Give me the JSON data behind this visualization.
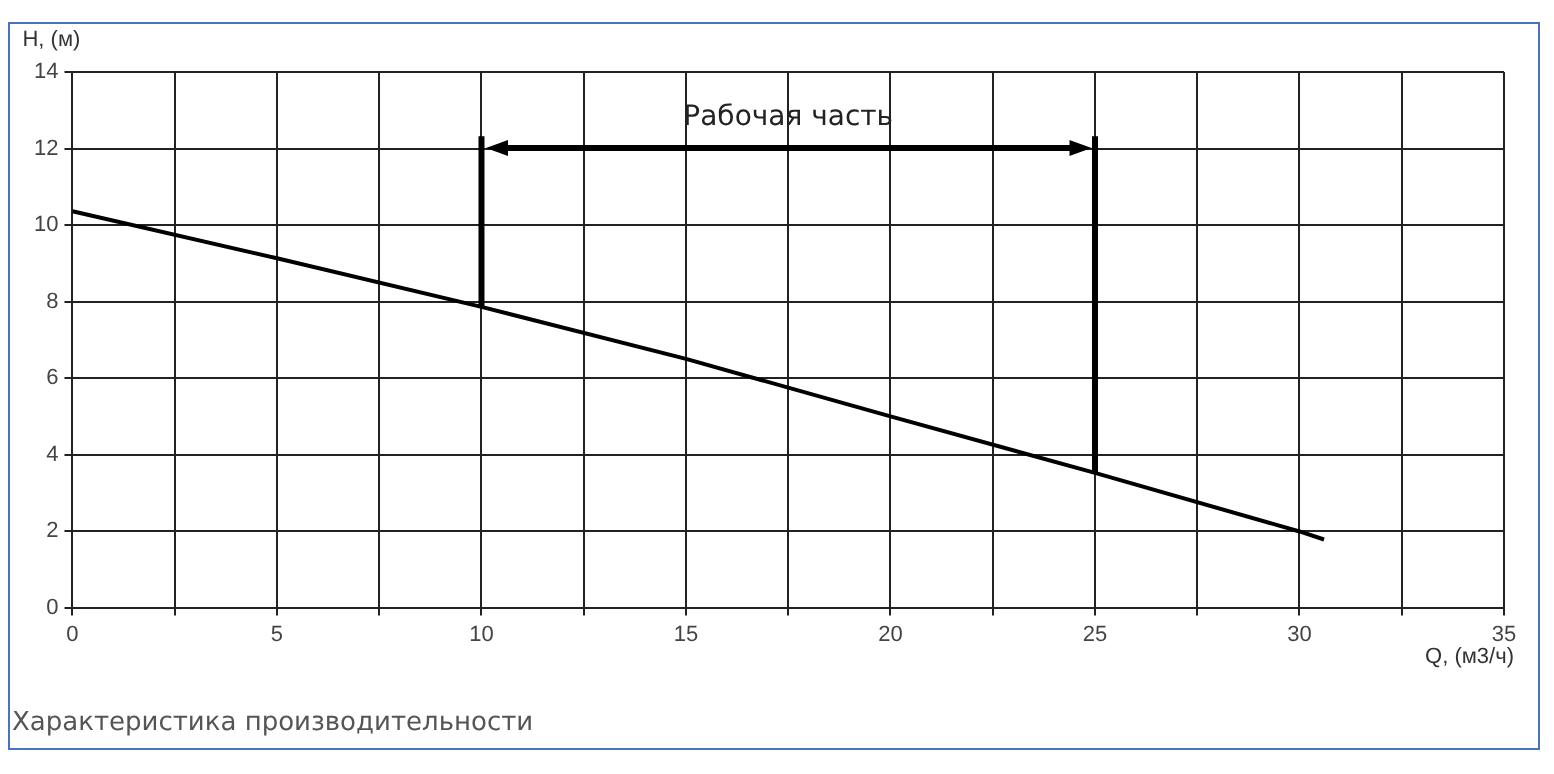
{
  "chart_data": {
    "type": "line",
    "xlabel": "Q, (м3/ч)",
    "ylabel": "H, (м)",
    "x": [
      0,
      5,
      10,
      15,
      20,
      25,
      30,
      30.6
    ],
    "series": [
      {
        "color": "#000000",
        "values": [
          10.36,
          9.13,
          7.86,
          6.5,
          5.0,
          3.52,
          1.99,
          1.78
        ]
      }
    ],
    "xlim": [
      0,
      35
    ],
    "xticks": [
      0,
      {
        "value": 2.5,
        "label": null
      },
      5,
      {
        "value": 7.5,
        "label": null
      },
      10,
      {
        "value": 12.5,
        "label": null
      },
      15,
      {
        "value": 17.5,
        "label": null
      },
      20,
      {
        "value": 22.5,
        "label": null
      },
      25,
      {
        "value": 27.5,
        "label": null
      },
      30,
      {
        "value": 32.5,
        "label": null
      },
      35
    ],
    "ylim": [
      0,
      14
    ],
    "yticks": [
      0,
      2,
      4,
      6,
      8,
      10,
      12,
      14
    ],
    "grid": true,
    "legend": false,
    "marker": "none",
    "line_style": "solid",
    "ref_lines": [
      {
        "axis": "x",
        "value": 10,
        "color": "#000000"
      },
      {
        "axis": "x",
        "value": 25,
        "color": "#000000"
      }
    ],
    "annotations": [
      "Рабочая часть",
      "Характеристика производительности"
    ]
  }
}
